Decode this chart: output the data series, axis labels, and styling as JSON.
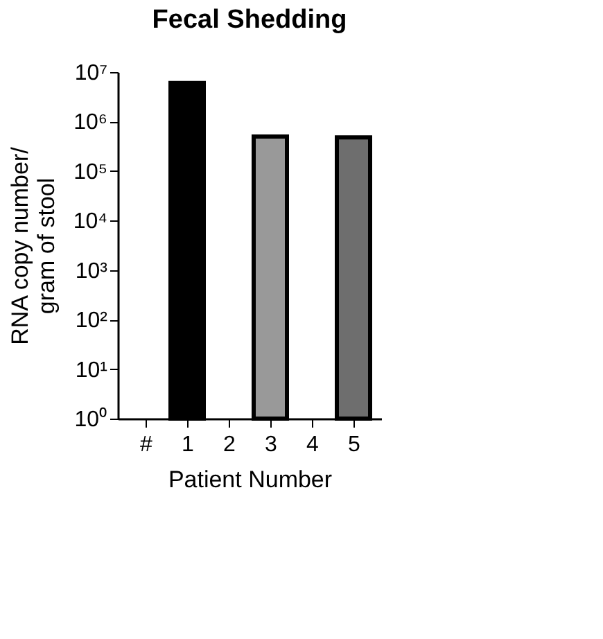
{
  "chart_data": {
    "type": "bar",
    "title": "Fecal Shedding",
    "xlabel": "Patient Number",
    "ylabel": "RNA copy number/\ngram of stool",
    "categories": [
      "#",
      "1",
      "2",
      "3",
      "4",
      "5"
    ],
    "values": [
      null,
      6000000,
      null,
      500000,
      null,
      480000
    ],
    "colors": [
      "#000000",
      "#000000",
      "#000000",
      "#999999",
      "#000000",
      "#6e6e6e"
    ],
    "log": "y",
    "ylim": [
      1,
      10000000
    ],
    "yticks": [
      {
        "value": 1,
        "label": "10⁰"
      },
      {
        "value": 10,
        "label": "10¹"
      },
      {
        "value": 100,
        "label": "10²"
      },
      {
        "value": 1000,
        "label": "10³"
      },
      {
        "value": 10000,
        "label": "10⁴"
      },
      {
        "value": 100000,
        "label": "10⁵"
      },
      {
        "value": 1000000,
        "label": "10⁶"
      },
      {
        "value": 10000000,
        "label": "10⁷"
      }
    ],
    "grid": false
  }
}
